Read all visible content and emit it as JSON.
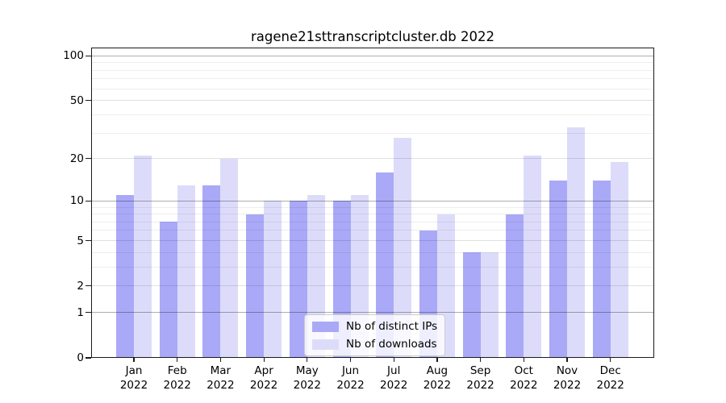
{
  "chart_data": {
    "type": "bar",
    "title": "ragene21sttranscriptcluster.db 2022",
    "categories": [
      "Jan",
      "Feb",
      "Mar",
      "Apr",
      "May",
      "Jun",
      "Jul",
      "Aug",
      "Sep",
      "Oct",
      "Nov",
      "Dec"
    ],
    "x_tick_year_line": "2022",
    "series": [
      {
        "name": "Nb of distinct IPs",
        "color": "#a9a9f8",
        "values": [
          11,
          7,
          13,
          8,
          10,
          10,
          16,
          6,
          4,
          8,
          14,
          14
        ]
      },
      {
        "name": "Nb of downloads",
        "color": "#dcdcfa",
        "values": [
          21,
          13,
          20,
          10,
          11,
          11,
          28,
          8,
          4,
          21,
          33,
          19
        ]
      }
    ],
    "yscale": "log1p",
    "xlabel": "",
    "ylabel": "",
    "y_ticks_labeled": [
      0,
      1,
      2,
      5,
      10,
      20,
      50,
      100
    ],
    "y_grid_major": [
      1,
      10,
      100
    ],
    "y_grid_secondary": [
      2,
      5,
      20,
      50
    ],
    "y_grid_minor": [
      3,
      4,
      6,
      7,
      8,
      9,
      30,
      40,
      60,
      70,
      80,
      90
    ],
    "ylim": [
      0,
      113
    ],
    "grid": true,
    "legend": {
      "location": "lower center",
      "entries": [
        "Nb of distinct IPs",
        "Nb of downloads"
      ]
    }
  },
  "colors": {
    "background": "#ffffff",
    "text": "#000000",
    "spine": "#1a1a1a",
    "legend_border": "#cccccc",
    "bar_distinct_ips": "#a9a9f8",
    "bar_downloads": "#dcdcfa"
  }
}
